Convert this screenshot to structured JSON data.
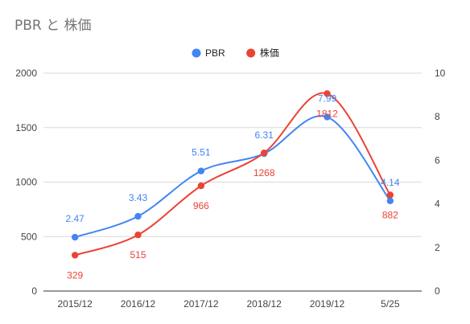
{
  "chart_data": {
    "type": "line",
    "title": "PBR と 株価",
    "categories": [
      "2015/12",
      "2016/12",
      "2017/12",
      "2018/12",
      "2019/12",
      "5/25"
    ],
    "y_left": {
      "range": [
        0,
        2000
      ],
      "ticks": [
        "0",
        "500",
        "1000",
        "1500",
        "2000"
      ]
    },
    "y_right": {
      "range": [
        0,
        10
      ],
      "ticks": [
        "0",
        "2",
        "4",
        "6",
        "8",
        "10"
      ]
    },
    "legend_position": "top-center",
    "grid": true,
    "series": [
      {
        "name": "PBR",
        "axis": "right",
        "color": "#4285f4",
        "values": [
          2.47,
          3.43,
          5.51,
          6.31,
          7.99,
          4.14
        ],
        "labels": [
          "2.47",
          "3.43",
          "5.51",
          "6.31",
          "7.99",
          "4.14"
        ]
      },
      {
        "name": "株価",
        "axis": "left",
        "color": "#ea4335",
        "values": [
          329,
          515,
          966,
          1268,
          1812,
          882
        ],
        "labels": [
          "329",
          "515",
          "966",
          "1268",
          "1812",
          "882"
        ]
      }
    ]
  }
}
